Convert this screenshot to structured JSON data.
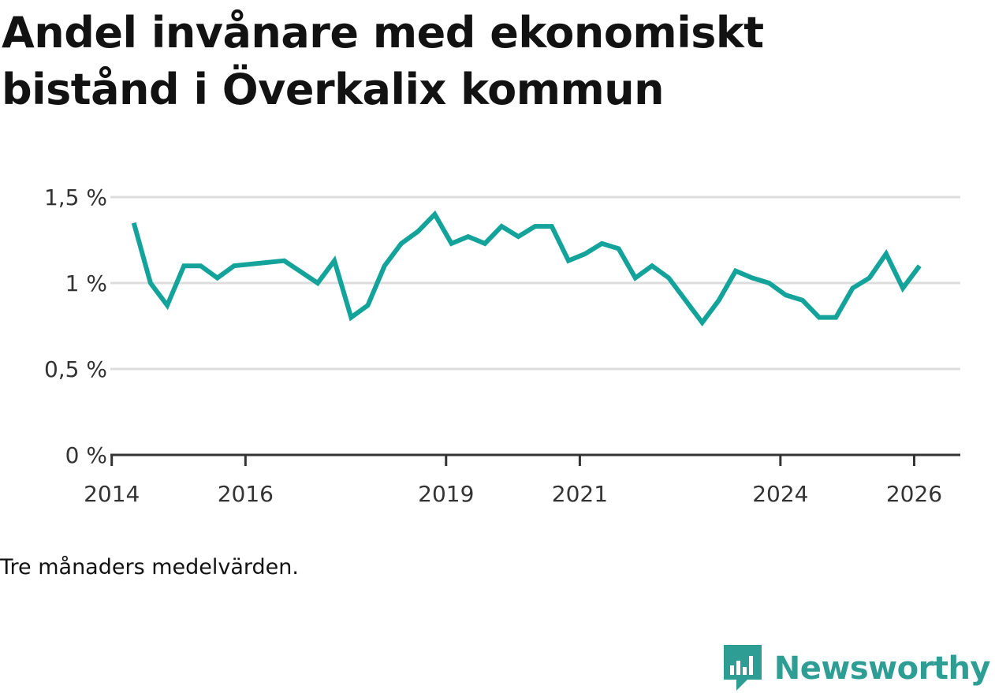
{
  "title_line1": "Andel invånare med ekonomiskt",
  "title_line2": "bistånd i Överkalix kommun",
  "note": "Tre månaders medelvärden.",
  "brand": {
    "name": "Newsworthy"
  },
  "colors": {
    "line": "#13a39a",
    "grid": "#dddddd",
    "axis": "#333333",
    "brand": "#2e9e94"
  },
  "chart_data": {
    "type": "line",
    "title": "Andel invånare med ekonomiskt bistånd i Överkalix kommun",
    "xlabel": "",
    "ylabel": "",
    "ylim": [
      0,
      1.5
    ],
    "yticks": [
      0,
      0.5,
      1,
      1.5
    ],
    "ytick_labels": [
      "0 %",
      "0,5 %",
      "1 %",
      "1,5 %"
    ],
    "xticks": [
      2014,
      2016,
      2019,
      2021,
      2024,
      2026
    ],
    "xtick_labels": [
      "2014",
      "2016",
      "2019",
      "2021",
      "2024",
      "2026"
    ],
    "grid": true,
    "series": [
      {
        "name": "Andel invånare med ekonomiskt bistånd",
        "x": [
          2014.33,
          2014.58,
          2014.83,
          2015.08,
          2015.33,
          2015.58,
          2015.83,
          2016.58,
          2017.08,
          2017.33,
          2017.58,
          2017.83,
          2018.08,
          2018.33,
          2018.58,
          2018.83,
          2019.08,
          2019.33,
          2019.58,
          2019.83,
          2020.08,
          2020.33,
          2020.58,
          2020.83,
          2021.08,
          2021.33,
          2021.58,
          2021.83,
          2022.08,
          2022.33,
          2022.58,
          2022.83,
          2023.08,
          2023.33,
          2023.58,
          2023.83,
          2024.08,
          2024.33,
          2024.58,
          2024.83,
          2025.08,
          2025.33,
          2025.58,
          2025.83,
          2026.08
        ],
        "values": [
          1.35,
          1.0,
          0.87,
          1.1,
          1.1,
          1.03,
          1.1,
          1.13,
          1.0,
          1.13,
          0.8,
          0.87,
          1.1,
          1.23,
          1.3,
          1.4,
          1.23,
          1.27,
          1.23,
          1.33,
          1.27,
          1.33,
          1.33,
          1.13,
          1.17,
          1.23,
          1.2,
          1.03,
          1.1,
          1.03,
          0.9,
          0.77,
          0.9,
          1.07,
          1.03,
          1.0,
          0.93,
          0.9,
          0.8,
          0.8,
          0.97,
          1.03,
          1.17,
          0.97,
          1.1
        ]
      }
    ]
  }
}
